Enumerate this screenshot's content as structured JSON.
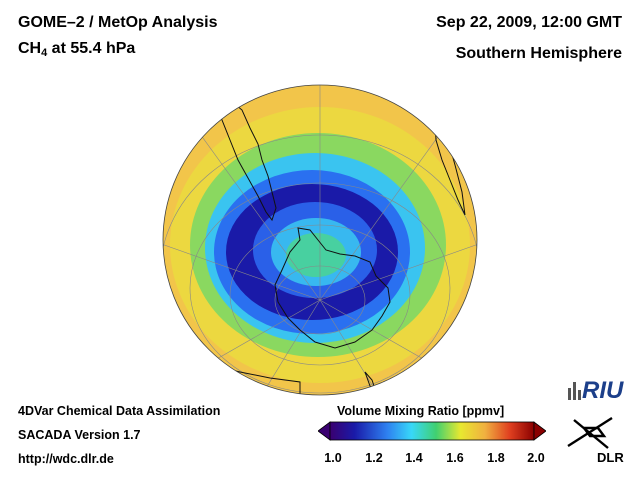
{
  "header": {
    "instrument": "GOME–2 / MetOp Analysis",
    "species": "CH",
    "species_sub": "4",
    "level": " at 55.4 hPa",
    "datetime": "Sep 22, 2009, 12:00 GMT",
    "region": "Southern Hemisphere"
  },
  "footer": {
    "line1": "4DVar Chemical Data Assimilation",
    "line2": "SACADA Version 1.7",
    "line3": "http://wdc.dlr.de"
  },
  "colorbar": {
    "title": "Volume Mixing Ratio [ppmv]",
    "min": 1.0,
    "max": 2.0,
    "ticks": [
      "1.0",
      "1.2",
      "1.4",
      "1.6",
      "1.8",
      "2.0"
    ]
  },
  "map": {
    "projection": "orthographic, south pole centered",
    "field": "CH4 volume mixing ratio",
    "colors": {
      "low": "#1a1aa8",
      "blue": "#2e6cf0",
      "cyan": "#38c8f8",
      "green": "#40d070",
      "yellow": "#f0e030",
      "orange": "#f0b040",
      "red": "#d02020"
    }
  },
  "logos": {
    "riu": "RIU",
    "dlr": "DLR"
  }
}
